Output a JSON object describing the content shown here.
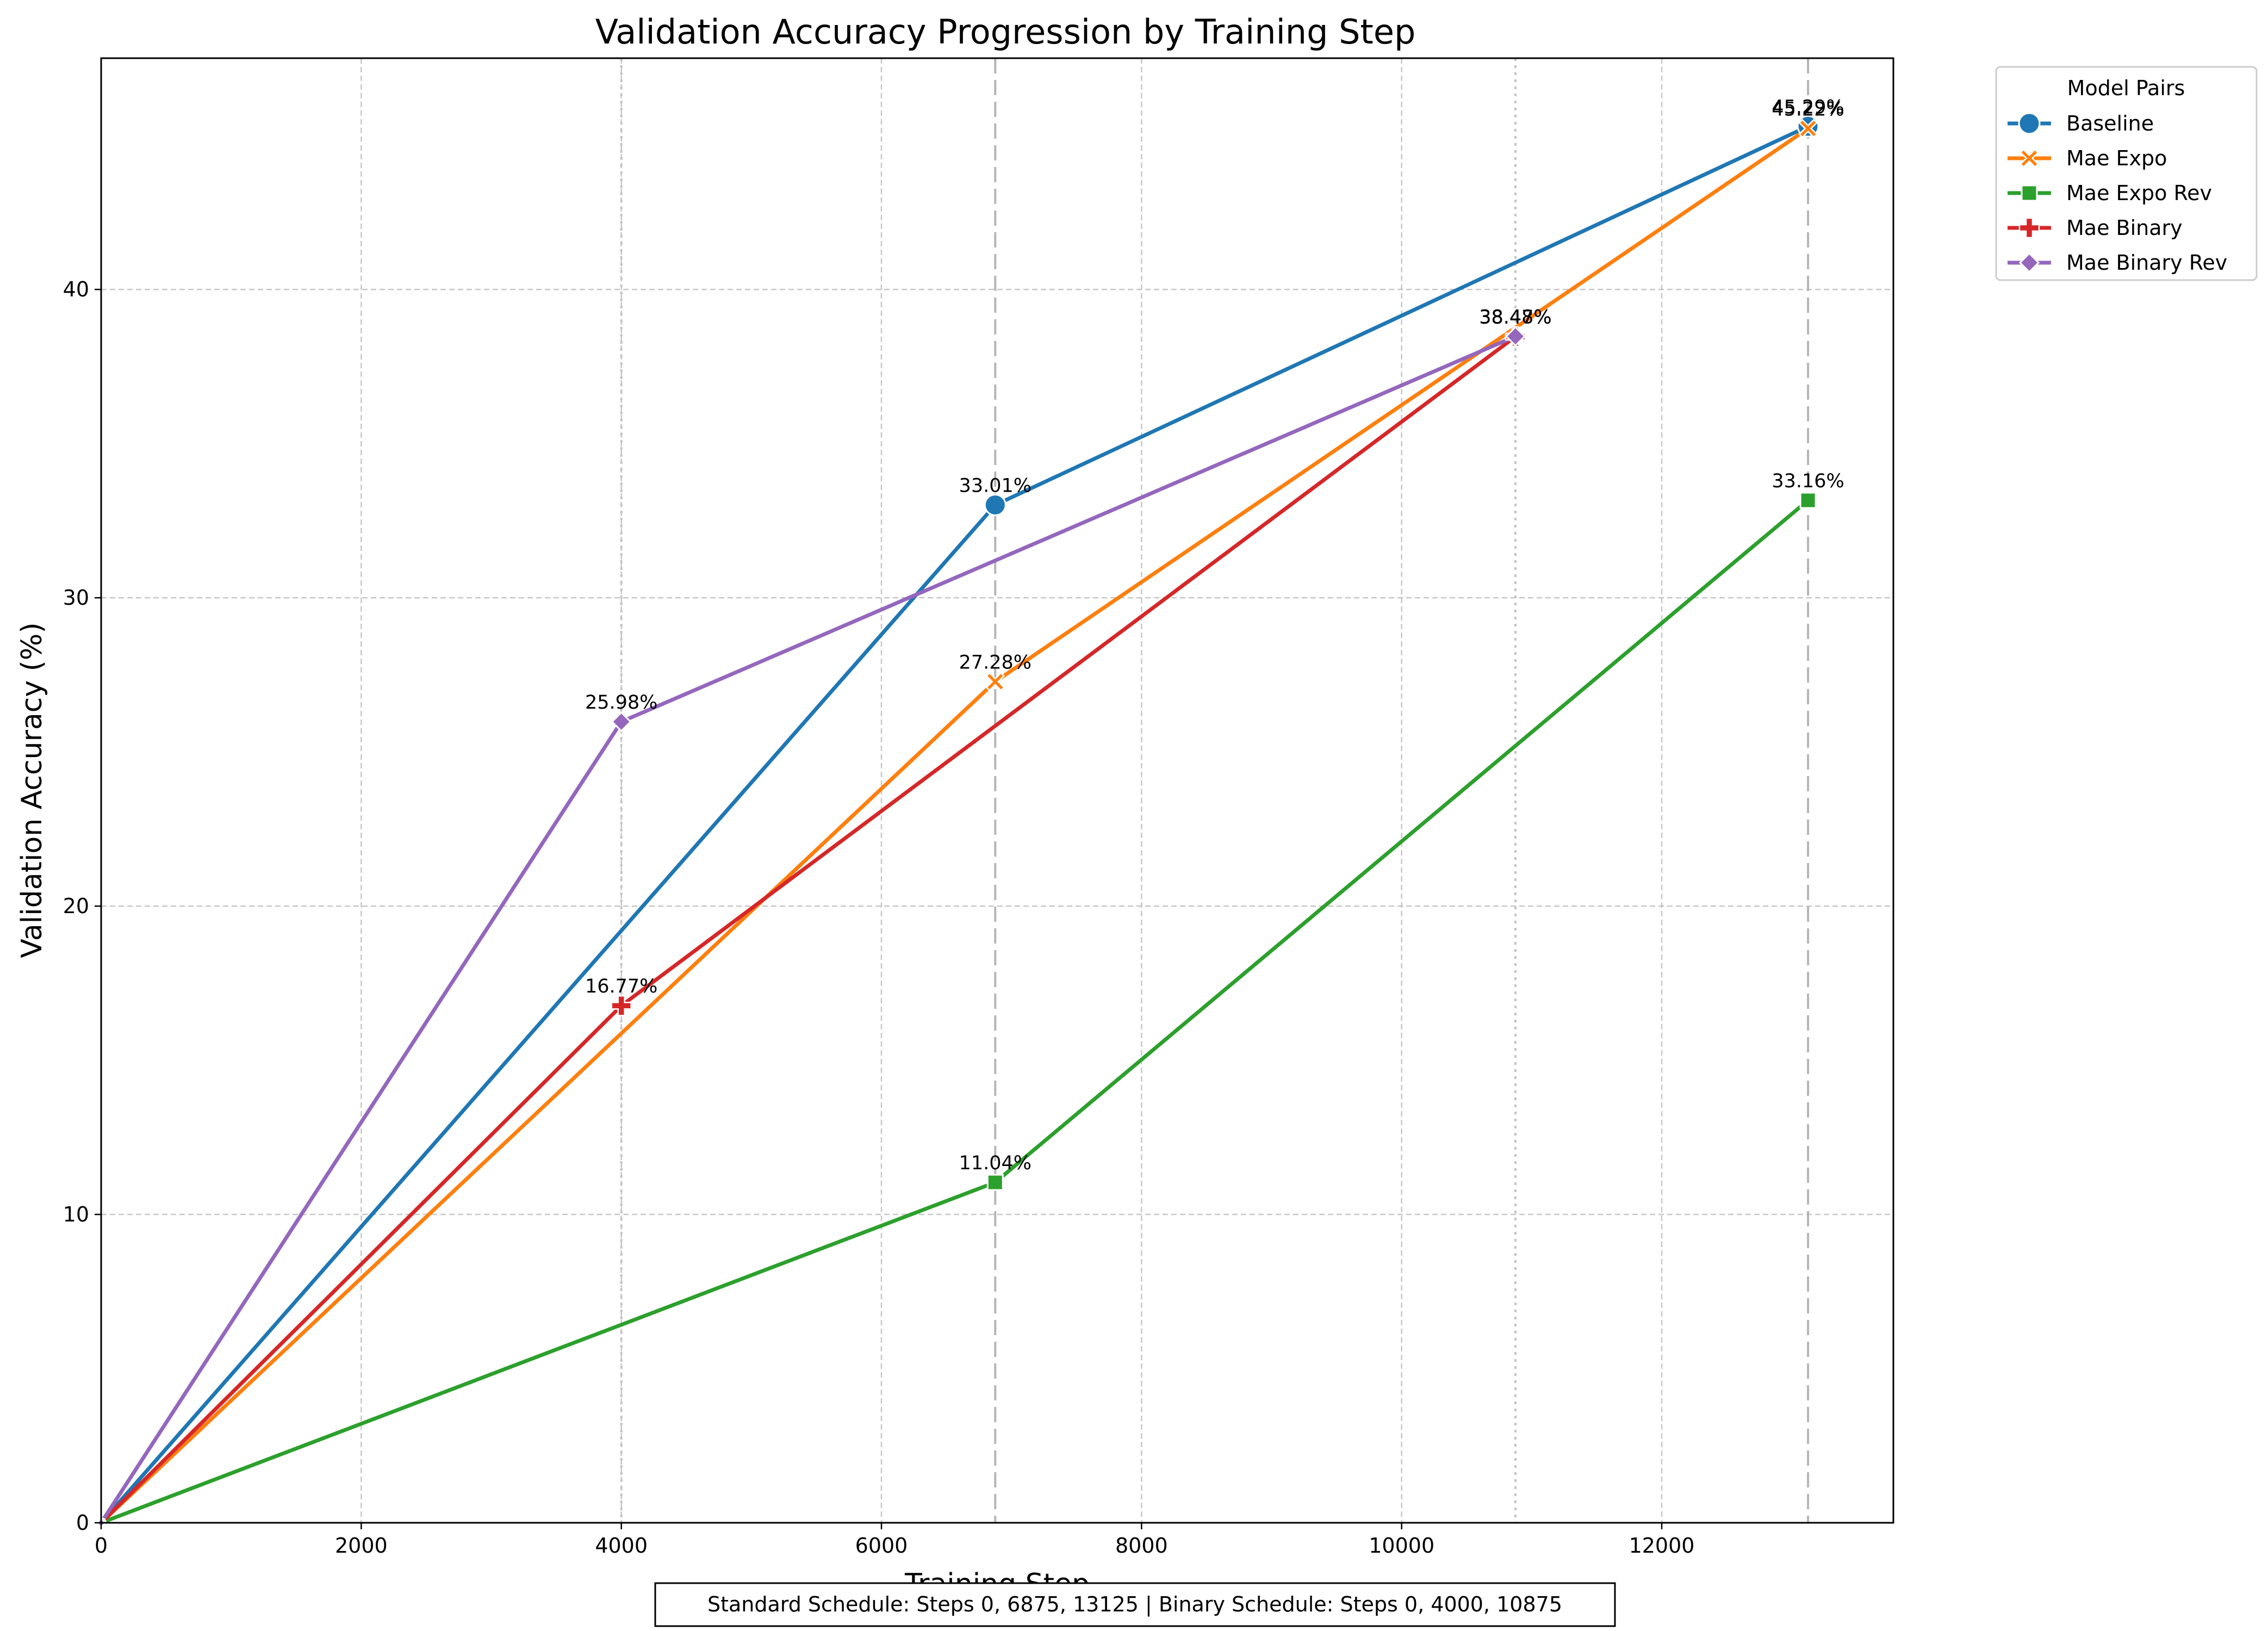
{
  "chart_data": {
    "type": "line",
    "title": "Validation Accuracy Progression by Training Step",
    "xlabel": "Training Step",
    "ylabel": "Validation Accuracy (%)",
    "xlim": [
      0,
      13781
    ],
    "ylim": [
      0,
      47.5
    ],
    "x_ticks": [
      0,
      2000,
      4000,
      6000,
      8000,
      10000,
      12000
    ],
    "y_ticks": [
      0,
      10,
      20,
      30,
      40
    ],
    "grid": true,
    "legend": {
      "title": "Model Pairs",
      "placement": "outside-top-right"
    },
    "schedule_lines": {
      "standard": [
        6875,
        13125
      ],
      "binary": [
        4000,
        10875
      ]
    },
    "note": "Standard Schedule: Steps 0, 6875, 13125 | Binary Schedule: Steps 0, 4000, 10875",
    "series": [
      {
        "name": "Baseline",
        "color": "#1f77b4",
        "marker": "circle",
        "points": [
          [
            0,
            0
          ],
          [
            6875,
            33.01
          ],
          [
            13125,
            45.29
          ]
        ],
        "labels": [
          "",
          "33.01%",
          "45.29%"
        ]
      },
      {
        "name": "Mae Expo",
        "color": "#ff7f0e",
        "marker": "x",
        "points": [
          [
            0,
            0
          ],
          [
            6875,
            27.28
          ],
          [
            13125,
            45.22
          ]
        ],
        "labels": [
          "",
          "27.28%",
          "45.22%"
        ]
      },
      {
        "name": "Mae Expo Rev",
        "color": "#2ca02c",
        "marker": "square",
        "points": [
          [
            0,
            0
          ],
          [
            6875,
            11.04
          ],
          [
            13125,
            33.16
          ]
        ],
        "labels": [
          "",
          "11.04%",
          "33.16%"
        ]
      },
      {
        "name": "Mae Binary",
        "color": "#d62728",
        "marker": "plus",
        "points": [
          [
            0,
            0
          ],
          [
            4000,
            16.77
          ],
          [
            10875,
            38.47
          ]
        ],
        "labels": [
          "",
          "16.77%",
          "38.47%"
        ]
      },
      {
        "name": "Mae Binary Rev",
        "color": "#9467bd",
        "marker": "diamond",
        "points": [
          [
            0,
            0
          ],
          [
            4000,
            25.98
          ],
          [
            10875,
            38.48
          ]
        ],
        "labels": [
          "",
          "25.98%",
          "38.48%"
        ]
      }
    ]
  }
}
